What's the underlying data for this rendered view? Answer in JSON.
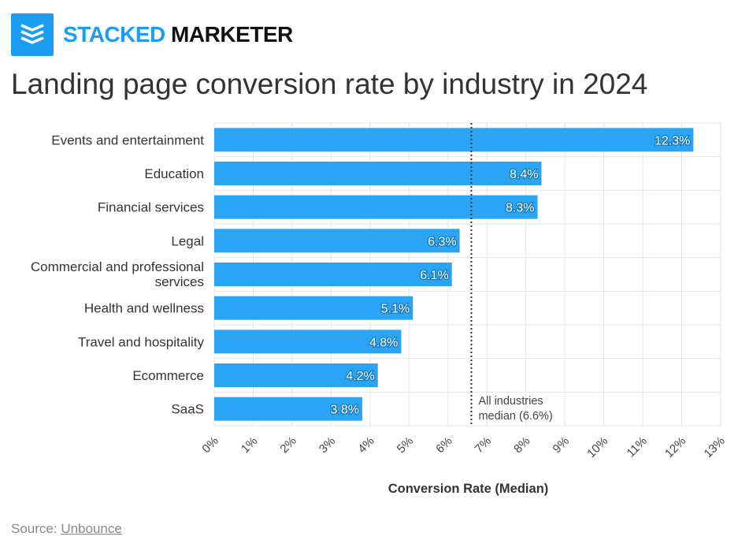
{
  "brand": {
    "name_part1": "STACKED",
    "name_part2": "MARKETER",
    "logo_icon": "stacked-layers-icon",
    "accent_color": "#1a9df2"
  },
  "title": "Landing page conversion rate by industry in 2024",
  "source": {
    "prefix": "Source: ",
    "link_text": "Unbounce"
  },
  "chart_data": {
    "type": "bar",
    "orientation": "horizontal",
    "categories": [
      "Events and entertainment",
      "Education",
      "Financial services",
      "Legal",
      "Commercial and professional services",
      "Health and wellness",
      "Travel and hospitality",
      "Ecommerce",
      "SaaS"
    ],
    "values": [
      12.3,
      8.4,
      8.3,
      6.3,
      6.1,
      5.1,
      4.8,
      4.2,
      3.8
    ],
    "data_labels": [
      "12.3%",
      "8.4%",
      "8.3%",
      "6.3%",
      "6.1%",
      "5.1%",
      "4.8%",
      "4.2%",
      "3.8%"
    ],
    "xlabel": "Conversion Rate (Median)",
    "xlim": [
      0,
      13
    ],
    "xticks": [
      0,
      1,
      2,
      3,
      4,
      5,
      6,
      7,
      8,
      9,
      10,
      11,
      12,
      13
    ],
    "xtick_labels": [
      "0%",
      "1%",
      "2%",
      "3%",
      "4%",
      "5%",
      "6%",
      "7%",
      "8%",
      "9%",
      "10%",
      "11%",
      "12%",
      "13%"
    ],
    "bar_color": "#2aa5f5",
    "grid": true,
    "reference_line": {
      "value": 6.6,
      "style": "dotted",
      "label_lines": [
        "All industries",
        "median (6.6%)"
      ]
    }
  }
}
